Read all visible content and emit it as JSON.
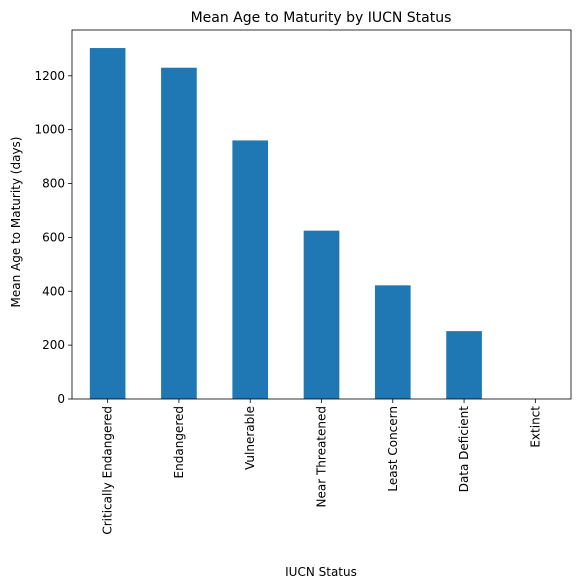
{
  "chart_data": {
    "type": "bar",
    "title": "Mean Age to Maturity by IUCN Status",
    "xlabel": "IUCN Status",
    "ylabel": "Mean Age to Maturity (days)",
    "categories": [
      "Critically Endangered",
      "Endangered",
      "Vulnerable",
      "Near Threatened",
      "Least Concern",
      "Data Deficient",
      "Extinct"
    ],
    "values": [
      1303,
      1230,
      960,
      625,
      422,
      252,
      0
    ],
    "ylim": [
      0,
      1370
    ],
    "yticks": [
      0,
      200,
      400,
      600,
      800,
      1000,
      1200
    ],
    "grid": false,
    "legend": "none",
    "bar_color": "#1f77b4"
  }
}
